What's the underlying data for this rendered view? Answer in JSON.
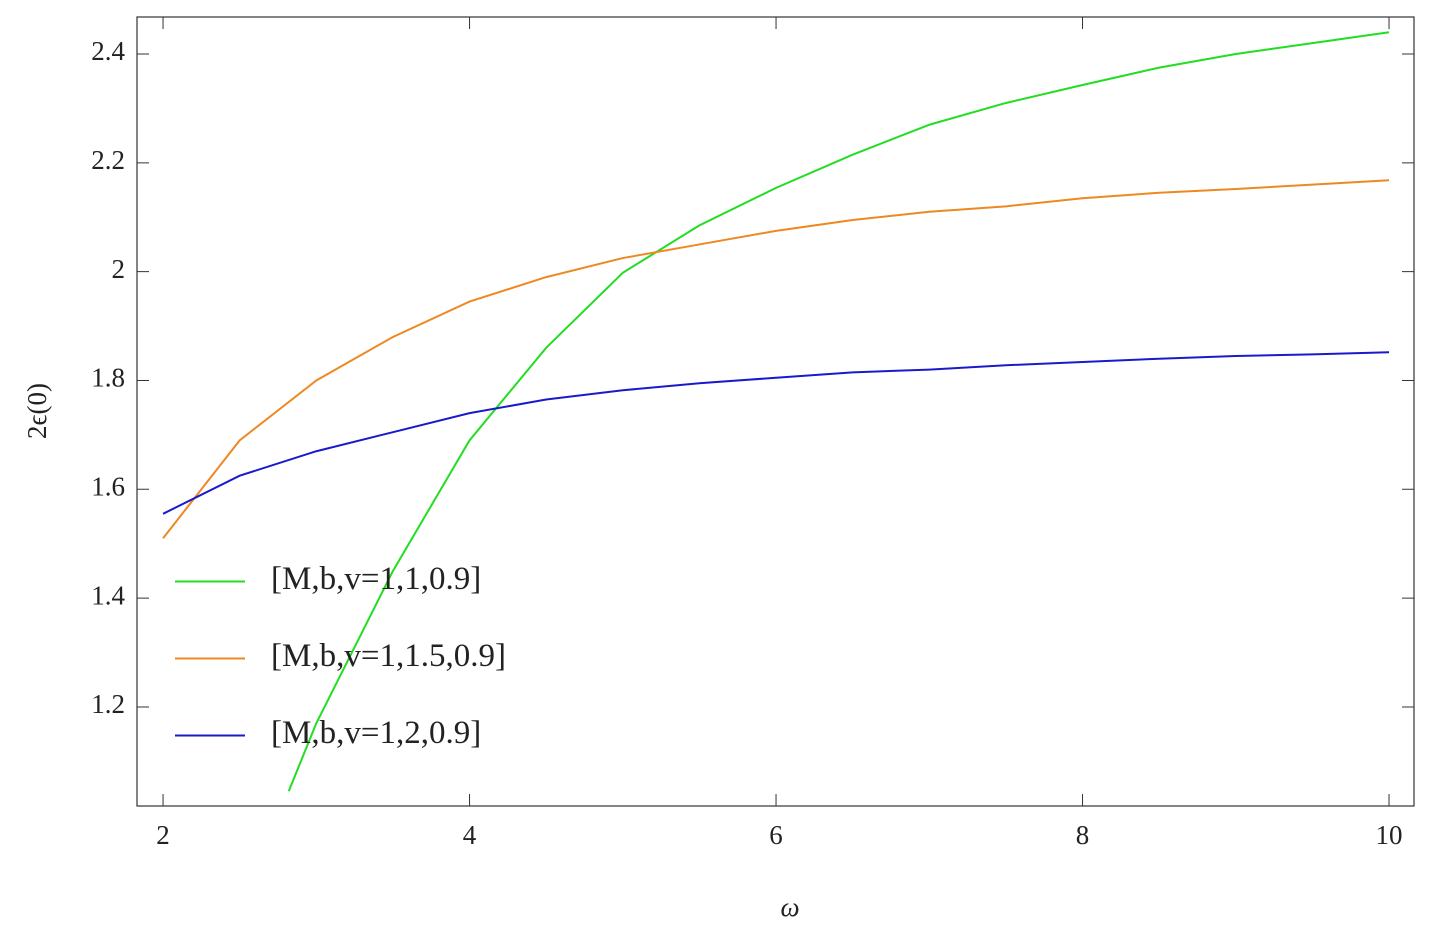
{
  "chart_data": {
    "type": "line",
    "x_label": "ω",
    "y_label": "2ϵ(0)",
    "xlim": [
      1.83,
      10.163
    ],
    "ylim": [
      1.018,
      2.468
    ],
    "xticks": [
      2,
      4,
      6,
      8,
      10
    ],
    "yticks": [
      1.2,
      1.4,
      1.6,
      1.8,
      2.0,
      2.2,
      2.4
    ],
    "legend": "center left",
    "grid": false,
    "series": [
      {
        "name": "[M,b,v=1,1,0.9]",
        "color": "#22dd22",
        "x": [
          2.82,
          3,
          3.5,
          4,
          4.5,
          5,
          5.5,
          6,
          6.5,
          7,
          7.5,
          8,
          8.5,
          9,
          9.5,
          10
        ],
        "values": [
          1.045,
          1.17,
          1.45,
          1.69,
          1.86,
          1.998,
          2.085,
          2.154,
          2.215,
          2.27,
          2.31,
          2.343,
          2.375,
          2.4,
          2.42,
          2.44
        ]
      },
      {
        "name": "[M,b,v=1,1.5,0.9]",
        "color": "#ee8822",
        "x": [
          2,
          2.5,
          3,
          3.5,
          4,
          4.5,
          5,
          5.5,
          6,
          6.5,
          7,
          7.5,
          8,
          8.5,
          9,
          9.5,
          10
        ],
        "values": [
          1.51,
          1.69,
          1.8,
          1.88,
          1.945,
          1.99,
          2.025,
          2.05,
          2.075,
          2.095,
          2.11,
          2.12,
          2.135,
          2.145,
          2.152,
          2.16,
          2.168
        ]
      },
      {
        "name": "[M,b,v=1,2,0.9]",
        "color": "#1a1acc",
        "x": [
          2,
          2.5,
          3,
          3.5,
          4,
          4.5,
          5,
          5.5,
          6,
          6.5,
          7,
          7.5,
          8,
          8.5,
          9,
          9.5,
          10
        ],
        "values": [
          1.555,
          1.625,
          1.67,
          1.705,
          1.74,
          1.765,
          1.782,
          1.795,
          1.805,
          1.815,
          1.82,
          1.828,
          1.834,
          1.84,
          1.845,
          1.848,
          1.852
        ]
      }
    ]
  }
}
